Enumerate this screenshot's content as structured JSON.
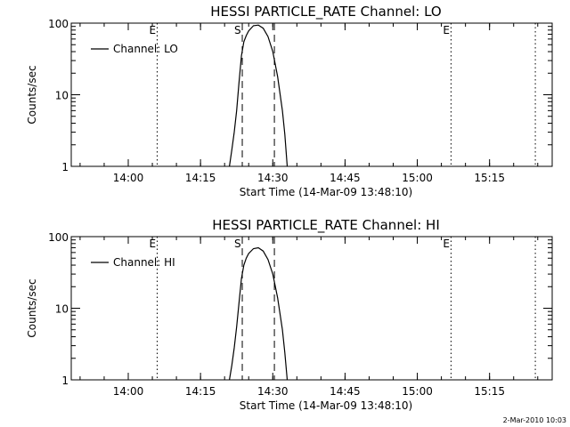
{
  "footer": {
    "timestamp": "2-Mar-2010 10:03"
  },
  "chart_data": [
    {
      "type": "line",
      "title": "HESSI PARTICLE_RATE Channel: LO",
      "xlabel": "Start Time (14-Mar-09 13:48:10)",
      "ylabel": "Counts/sec",
      "yscale": "log",
      "ylim": [
        1,
        100
      ],
      "xlim": [
        "13:48:10",
        "15:28:00"
      ],
      "x_ticks": [
        "14:00",
        "14:15",
        "14:30",
        "14:45",
        "15:00",
        "15:15"
      ],
      "y_ticks": [
        "1",
        "10",
        "100"
      ],
      "legend": {
        "position": "top-left",
        "entries": [
          "Channel: LO"
        ]
      },
      "series": [
        {
          "name": "Channel: LO",
          "x": [
            "14:21:00",
            "14:21:30",
            "14:22:00",
            "14:22:30",
            "14:23:00",
            "14:23:30",
            "14:24:00",
            "14:24:30",
            "14:25:00",
            "14:26:00",
            "14:27:00",
            "14:28:00",
            "14:29:00",
            "14:30:00",
            "14:31:00",
            "14:32:00",
            "14:32:30",
            "14:33:00"
          ],
          "values": [
            1,
            1.7,
            3,
            6,
            15,
            35,
            55,
            67,
            78,
            92,
            94,
            85,
            65,
            40,
            18,
            6,
            2.8,
            1
          ]
        }
      ],
      "markers": [
        {
          "type": "dotted",
          "x": "14:06:00",
          "label": "E"
        },
        {
          "type": "dashed",
          "x": "14:23:40",
          "label": "S"
        },
        {
          "type": "dashed",
          "x": "14:30:20",
          "label": ""
        },
        {
          "type": "dotted",
          "x": "15:07:00",
          "label": "E"
        },
        {
          "type": "dotted",
          "x": "15:24:30",
          "label": ""
        }
      ]
    },
    {
      "type": "line",
      "title": "HESSI PARTICLE_RATE Channel: HI",
      "xlabel": "Start Time (14-Mar-09 13:48:10)",
      "ylabel": "Counts/sec",
      "yscale": "log",
      "ylim": [
        1,
        100
      ],
      "xlim": [
        "13:48:10",
        "15:28:00"
      ],
      "x_ticks": [
        "14:00",
        "14:15",
        "14:30",
        "14:45",
        "15:00",
        "15:15"
      ],
      "y_ticks": [
        "1",
        "10",
        "100"
      ],
      "legend": {
        "position": "top-left",
        "entries": [
          "Channel: HI"
        ]
      },
      "series": [
        {
          "name": "Channel: HI",
          "x": [
            "14:21:00",
            "14:21:30",
            "14:22:00",
            "14:22:30",
            "14:23:00",
            "14:23:30",
            "14:24:00",
            "14:24:30",
            "14:25:00",
            "14:26:00",
            "14:27:00",
            "14:28:00",
            "14:29:00",
            "14:30:00",
            "14:31:00",
            "14:32:00",
            "14:32:30",
            "14:33:00"
          ],
          "values": [
            1,
            1.6,
            2.8,
            5.5,
            12,
            26,
            40,
            50,
            58,
            68,
            70,
            63,
            48,
            30,
            14,
            5,
            2.4,
            1
          ]
        }
      ],
      "markers": [
        {
          "type": "dotted",
          "x": "14:06:00",
          "label": "E"
        },
        {
          "type": "dashed",
          "x": "14:23:40",
          "label": "S"
        },
        {
          "type": "dashed",
          "x": "14:30:20",
          "label": ""
        },
        {
          "type": "dotted",
          "x": "15:07:00",
          "label": "E"
        },
        {
          "type": "dotted",
          "x": "15:24:30",
          "label": ""
        }
      ]
    }
  ]
}
